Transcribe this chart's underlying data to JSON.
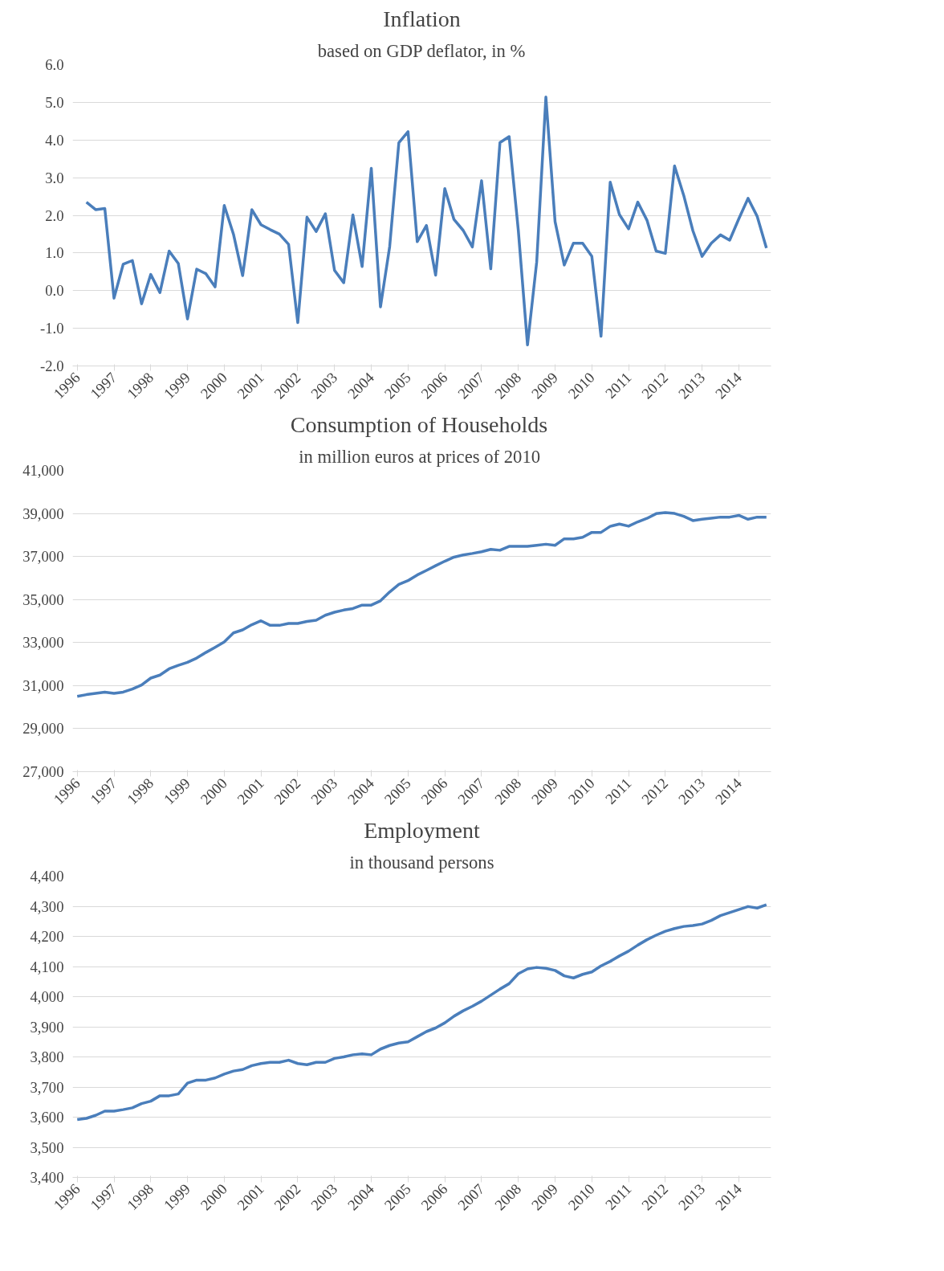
{
  "chart_data": [
    {
      "type": "line",
      "title": "Inflation",
      "subtitle": "based on GDP deflator, in %",
      "categories": [
        "1996",
        null,
        null,
        null,
        "1997",
        null,
        null,
        null,
        "1998",
        null,
        null,
        null,
        "1999",
        null,
        null,
        null,
        "2000",
        null,
        null,
        null,
        "2001",
        null,
        null,
        null,
        "2002",
        null,
        null,
        null,
        "2003",
        null,
        null,
        null,
        "2004",
        null,
        null,
        null,
        "2005",
        null,
        null,
        null,
        "2006",
        null,
        null,
        null,
        "2007",
        null,
        null,
        null,
        "2008",
        null,
        null,
        null,
        "2009",
        null,
        null,
        null,
        "2010",
        null,
        null,
        null,
        "2011",
        null,
        null,
        null,
        "2012",
        null,
        null,
        null,
        "2013",
        null,
        null,
        null,
        "2014",
        null,
        null,
        null
      ],
      "series": [
        {
          "color": "#4a7ebb",
          "values": [
            null,
            2.35,
            2.15,
            2.18,
            -0.2,
            0.7,
            0.8,
            -0.35,
            0.43,
            -0.05,
            1.05,
            0.72,
            -0.75,
            0.57,
            0.45,
            0.1,
            2.26,
            1.5,
            0.4,
            2.15,
            1.75,
            1.62,
            1.5,
            1.23,
            -0.85,
            1.95,
            1.57,
            2.04,
            0.54,
            0.21,
            2.01,
            0.64,
            3.25,
            -0.43,
            1.17,
            3.93,
            4.22,
            1.3,
            1.73,
            0.41,
            2.71,
            1.89,
            1.6,
            1.16,
            2.92,
            0.58,
            3.93,
            4.09,
            1.6,
            -1.44,
            0.76,
            5.14,
            1.83,
            0.68,
            1.26,
            1.26,
            0.91,
            -1.21,
            2.88,
            2.02,
            1.64,
            2.35,
            1.87,
            1.05,
            0.99,
            3.31,
            2.53,
            1.59,
            0.91,
            1.26,
            1.48,
            1.34,
            1.91,
            2.45,
            1.97,
            1.13
          ]
        }
      ],
      "ylim": [
        -2,
        6
      ],
      "yticks": [
        {
          "value": -2,
          "label": "-2.0"
        },
        {
          "value": -1,
          "label": "-1.0"
        },
        {
          "value": 0,
          "label": "0.0"
        },
        {
          "value": 1,
          "label": "1.0"
        },
        {
          "value": 2,
          "label": "2.0"
        },
        {
          "value": 3,
          "label": "3.0"
        },
        {
          "value": 4,
          "label": "4.0"
        },
        {
          "value": 5,
          "label": "5.0"
        },
        {
          "value": 6,
          "label": "6.0"
        }
      ],
      "grid": "y",
      "marker": "none",
      "line_style": "solid"
    },
    {
      "type": "line",
      "title": "Consumption  of Households",
      "subtitle": "in million  euros at prices of 2010",
      "categories": [
        "1996",
        null,
        null,
        null,
        "1997",
        null,
        null,
        null,
        "1998",
        null,
        null,
        null,
        "1999",
        null,
        null,
        null,
        "2000",
        null,
        null,
        null,
        "2001",
        null,
        null,
        null,
        "2002",
        null,
        null,
        null,
        "2003",
        null,
        null,
        null,
        "2004",
        null,
        null,
        null,
        "2005",
        null,
        null,
        null,
        "2006",
        null,
        null,
        null,
        "2007",
        null,
        null,
        null,
        "2008",
        null,
        null,
        null,
        "2009",
        null,
        null,
        null,
        "2010",
        null,
        null,
        null,
        "2011",
        null,
        null,
        null,
        "2012",
        null,
        null,
        null,
        "2013",
        null,
        null,
        null,
        "2014",
        null,
        null,
        null
      ],
      "series": [
        {
          "color": "#4a7ebb",
          "values": [
            30500,
            30580,
            30640,
            30700,
            30640,
            30700,
            30840,
            31030,
            31350,
            31490,
            31780,
            31940,
            32080,
            32280,
            32540,
            32780,
            33030,
            33450,
            33590,
            33830,
            34010,
            33800,
            33800,
            33890,
            33890,
            33980,
            34040,
            34270,
            34410,
            34510,
            34580,
            34740,
            34740,
            34940,
            35350,
            35700,
            35880,
            36140,
            36350,
            36570,
            36780,
            36970,
            37070,
            37140,
            37220,
            37330,
            37290,
            37470,
            37470,
            37470,
            37520,
            37570,
            37520,
            37820,
            37820,
            37890,
            38120,
            38120,
            38400,
            38510,
            38410,
            38610,
            38770,
            38990,
            39040,
            39000,
            38870,
            38670,
            38730,
            38780,
            38830,
            38830,
            38910,
            38730,
            38830,
            38830
          ]
        }
      ],
      "ylim": [
        27000,
        41000
      ],
      "yticks": [
        {
          "value": 27000,
          "label": "27,000"
        },
        {
          "value": 29000,
          "label": "29,000"
        },
        {
          "value": 31000,
          "label": "31,000"
        },
        {
          "value": 33000,
          "label": "33,000"
        },
        {
          "value": 35000,
          "label": "35,000"
        },
        {
          "value": 37000,
          "label": "37,000"
        },
        {
          "value": 39000,
          "label": "39,000"
        },
        {
          "value": 41000,
          "label": "41,000"
        }
      ],
      "grid": "y",
      "marker": "none",
      "line_style": "solid"
    },
    {
      "type": "line",
      "title": "Employment",
      "subtitle": "in thousand persons",
      "categories": [
        "1996",
        null,
        null,
        null,
        "1997",
        null,
        null,
        null,
        "1998",
        null,
        null,
        null,
        "1999",
        null,
        null,
        null,
        "2000",
        null,
        null,
        null,
        "2001",
        null,
        null,
        null,
        "2002",
        null,
        null,
        null,
        "2003",
        null,
        null,
        null,
        "2004",
        null,
        null,
        null,
        "2005",
        null,
        null,
        null,
        "2006",
        null,
        null,
        null,
        "2007",
        null,
        null,
        null,
        "2008",
        null,
        null,
        null,
        "2009",
        null,
        null,
        null,
        "2010",
        null,
        null,
        null,
        "2011",
        null,
        null,
        null,
        "2012",
        null,
        null,
        null,
        "2013",
        null,
        null,
        null,
        "2014",
        null,
        null,
        null
      ],
      "series": [
        {
          "color": "#4a7ebb",
          "values": [
            3592,
            3596,
            3606,
            3620,
            3620,
            3625,
            3631,
            3645,
            3653,
            3671,
            3671,
            3677,
            3713,
            3723,
            3723,
            3730,
            3743,
            3753,
            3758,
            3771,
            3778,
            3782,
            3782,
            3789,
            3778,
            3774,
            3782,
            3782,
            3795,
            3800,
            3807,
            3810,
            3807,
            3826,
            3838,
            3846,
            3850,
            3867,
            3884,
            3896,
            3913,
            3935,
            3953,
            3968,
            3985,
            4005,
            4025,
            4043,
            4076,
            4092,
            4097,
            4094,
            4087,
            4069,
            4062,
            4074,
            4082,
            4102,
            4117,
            4135,
            4151,
            4171,
            4189,
            4204,
            4217,
            4226,
            4233,
            4236,
            4241,
            4253,
            4269,
            4279,
            4289,
            4299,
            4294,
            4305
          ]
        }
      ],
      "ylim": [
        3400,
        4400
      ],
      "yticks": [
        {
          "value": 3400,
          "label": "3,400"
        },
        {
          "value": 3500,
          "label": "3,500"
        },
        {
          "value": 3600,
          "label": "3,600"
        },
        {
          "value": 3700,
          "label": "3,700"
        },
        {
          "value": 3800,
          "label": "3,800"
        },
        {
          "value": 3900,
          "label": "3,900"
        },
        {
          "value": 4000,
          "label": "4,000"
        },
        {
          "value": 4100,
          "label": "4,100"
        },
        {
          "value": 4200,
          "label": "4,200"
        },
        {
          "value": 4300,
          "label": "4,300"
        },
        {
          "value": 4400,
          "label": "4,400"
        }
      ],
      "grid": "y",
      "marker": "none",
      "line_style": "solid"
    }
  ]
}
